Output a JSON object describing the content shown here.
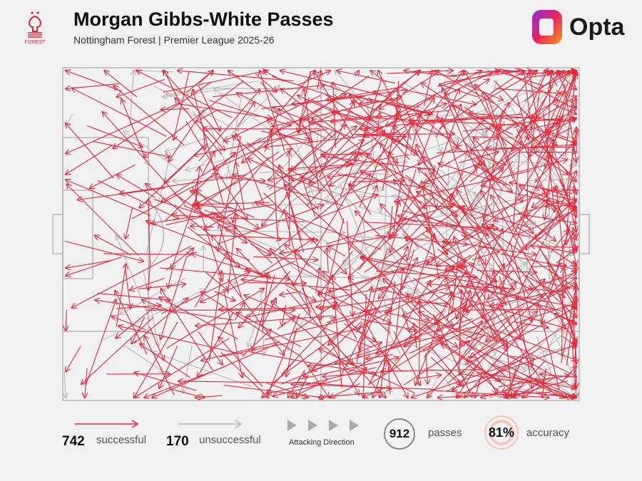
{
  "header": {
    "title": "Morgan Gibbs-White Passes",
    "subtitle": "Nottingham Forest | Premier League 2025-26",
    "club_badge_text": "FOREST",
    "brand": "Opta"
  },
  "legend": {
    "successful_count": "742",
    "successful_label": "successful",
    "unsuccessful_count": "170",
    "unsuccessful_label": "unsuccessful",
    "direction_label": "Attacking Direction",
    "total": "912",
    "total_label": "passes",
    "accuracy": "81%",
    "accuracy_label": "accuracy"
  },
  "colors": {
    "successful": "#e8263a",
    "unsuccessful": "#b8b8b8",
    "pitch_lines": "#b5b5b5",
    "background": "#f1f1f1"
  },
  "chart_data": {
    "type": "pass-map",
    "attacking_direction": "left-to-right",
    "series": [
      {
        "name": "successful",
        "count": 742,
        "color": "#e8263a"
      },
      {
        "name": "unsuccessful",
        "count": 170,
        "color": "#b8b8b8"
      }
    ],
    "total_passes": 912,
    "accuracy_pct": 81
  }
}
